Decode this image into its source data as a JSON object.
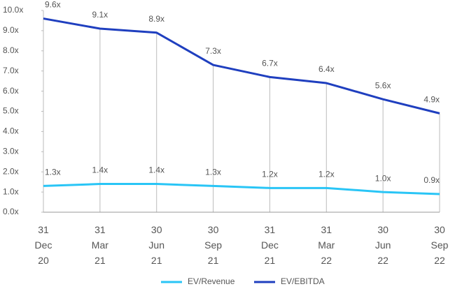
{
  "chart_data": {
    "type": "line",
    "categories": [
      "31 Dec 20",
      "31 Mar 21",
      "30 Jun 21",
      "30 Sep 21",
      "31 Dec 21",
      "31 Mar 22",
      "30 Jun 22",
      "30 Sep 22"
    ],
    "series": [
      {
        "name": "EV/Revenue",
        "color": "#29c5f6",
        "values": [
          1.3,
          1.4,
          1.4,
          1.3,
          1.2,
          1.2,
          1.0,
          0.9
        ],
        "value_labels": [
          "1.3x",
          "1.4x",
          "1.4x",
          "1.3x",
          "1.2x",
          "1.2x",
          "1.0x",
          "0.9x"
        ]
      },
      {
        "name": "EV/EBITDA",
        "color": "#1f3fbf",
        "values": [
          9.6,
          9.1,
          8.9,
          7.3,
          6.7,
          6.4,
          5.6,
          4.9
        ],
        "value_labels": [
          "9.6x",
          "9.1x",
          "8.9x",
          "7.3x",
          "6.7x",
          "6.4x",
          "5.6x",
          "4.9x"
        ]
      }
    ],
    "ylim": [
      0,
      10
    ],
    "yticks": [
      {
        "value": 0,
        "label": "0.0x"
      },
      {
        "value": 1,
        "label": "1.0x"
      },
      {
        "value": 2,
        "label": "2.0x"
      },
      {
        "value": 3,
        "label": "3.0x"
      },
      {
        "value": 4,
        "label": "4.0x"
      },
      {
        "value": 5,
        "label": "5.0x"
      },
      {
        "value": 6,
        "label": "6.0x"
      },
      {
        "value": 7,
        "label": "7.0x"
      },
      {
        "value": 8,
        "label": "8.0x"
      },
      {
        "value": 9,
        "label": "9.0x"
      },
      {
        "value": 10,
        "label": "10.0x"
      }
    ],
    "legend": "bottom"
  }
}
